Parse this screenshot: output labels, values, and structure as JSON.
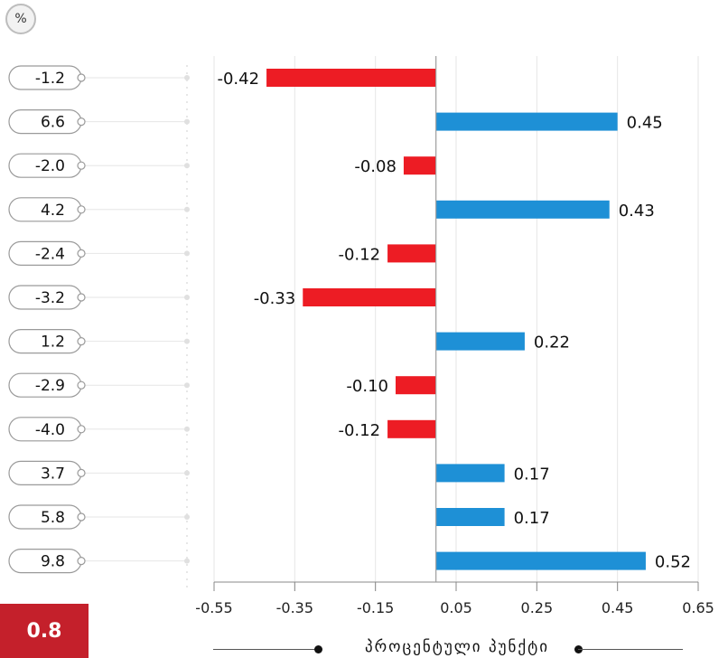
{
  "badge": {
    "symbol": "%"
  },
  "summary": {
    "value": "0.8"
  },
  "chart_data": {
    "type": "bar",
    "orientation": "horizontal",
    "row_labels": [
      "-1.2",
      "6.6",
      "-2.0",
      "4.2",
      "-2.4",
      "-3.2",
      "1.2",
      "-2.9",
      "-4.0",
      "3.7",
      "5.8",
      "9.8"
    ],
    "values": [
      -0.42,
      0.45,
      -0.08,
      0.43,
      -0.12,
      -0.33,
      0.22,
      -0.1,
      -0.12,
      0.17,
      0.17,
      0.52
    ],
    "value_labels": [
      "-0.42",
      "0.45",
      "-0.08",
      "0.43",
      "-0.12",
      "-0.33",
      "0.22",
      "-0.10",
      "-0.12",
      "0.17",
      "0.17",
      "0.52"
    ],
    "xlim": [
      -0.55,
      0.65
    ],
    "xticks": [
      -0.55,
      -0.35,
      -0.15,
      0.05,
      0.25,
      0.45,
      0.65
    ],
    "xtick_labels": [
      "-0.55",
      "-0.35",
      "-0.15",
      "0.05",
      "0.25",
      "0.45",
      "0.65"
    ],
    "baseline": 0,
    "xlabel": "პროცენტული პუნქტი",
    "colors": {
      "positive": "#1e90d6",
      "negative": "#ed1c24"
    },
    "grid": true,
    "legend": "none"
  }
}
